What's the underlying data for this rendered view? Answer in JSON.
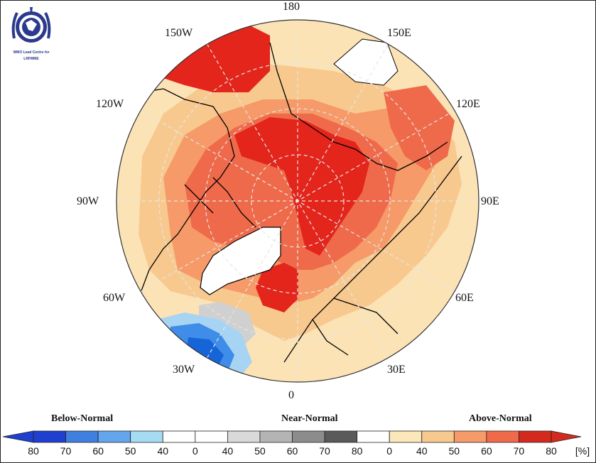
{
  "logo": {
    "text_line1": "WMO Lead Centre for",
    "text_line2": "LRFMME"
  },
  "map": {
    "projection": "polar stereographic (north pole)",
    "longitude_labels": {
      "top": "180",
      "top_left": "150W",
      "top_right": "150E",
      "upper_left": "120W",
      "upper_right": "120E",
      "left": "90W",
      "right": "90E",
      "lower_left": "60W",
      "lower_right": "60E",
      "bottom_left": "30W",
      "bottom_right": "30E",
      "bottom": "0"
    },
    "colors": {
      "ocean_land_outline": "#000000",
      "graticule": "#dddddd",
      "above_40": "#fbe3b6",
      "above_50": "#f8c98f",
      "above_60": "#f59a68",
      "above_70": "#ef6a4a",
      "above_80": "#e3251c",
      "below_50": "#a8d4f3",
      "below_60": "#6fb2ee",
      "below_70": "#3f8de8",
      "below_80": "#1565d8",
      "near_50": "#d0d0d0"
    }
  },
  "legend": {
    "categories": {
      "below": "Below-Normal",
      "near": "Near-Normal",
      "above": "Above-Normal"
    },
    "ticks": [
      "80",
      "70",
      "60",
      "50",
      "40",
      "0",
      "40",
      "50",
      "60",
      "70",
      "80",
      "0",
      "40",
      "50",
      "60",
      "70",
      "80",
      "[%]"
    ],
    "colors": [
      "#1f3fd0",
      "#3f7fe0",
      "#64a6ee",
      "#a5dcf4",
      "#ffffff",
      "#ffffff",
      "#d9d9d9",
      "#b4b4b4",
      "#8c8c8c",
      "#5a5a5a",
      "#ffffff",
      "#fbe7b9",
      "#f8c98f",
      "#f59a68",
      "#ef6a4a",
      "#d42a1e"
    ]
  }
}
